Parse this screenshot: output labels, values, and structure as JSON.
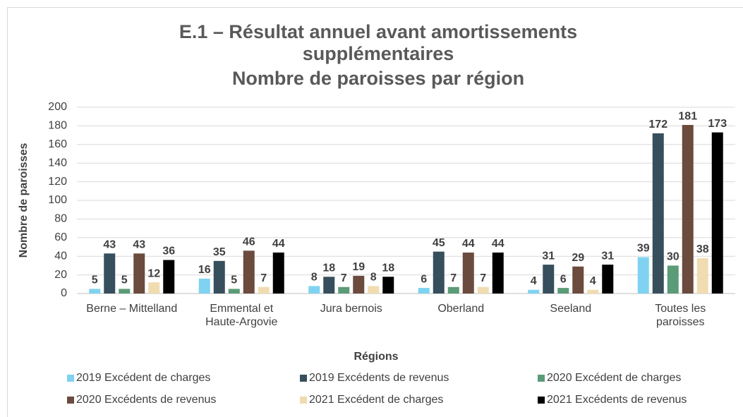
{
  "chart_data": {
    "type": "bar",
    "title": "E.1 – Résultat annuel avant amortissements supplémentaires",
    "subtitle": "Nombre de paroisses par région",
    "x_label": "Régions",
    "y_label": "Nombre de paroisses",
    "categories": [
      "Berne – Mittelland",
      "Emmental et Haute-Argovie",
      "Jura bernois",
      "Oberland",
      "Seeland",
      "Toutes les paroisses"
    ],
    "series": [
      {
        "name": "2019 Excédent de charges",
        "color": "#7fd3f0",
        "values": [
          5,
          16,
          8,
          6,
          4,
          39
        ]
      },
      {
        "name": "2019 Excédents de revenus",
        "color": "#374f5c",
        "values": [
          43,
          35,
          18,
          45,
          31,
          172
        ]
      },
      {
        "name": "2020 Excédent de charges",
        "color": "#5b9b78",
        "values": [
          5,
          5,
          7,
          7,
          6,
          30
        ]
      },
      {
        "name": "2020 Excédents de revenus",
        "color": "#6b4b3e",
        "values": [
          43,
          46,
          19,
          44,
          29,
          181
        ]
      },
      {
        "name": "2021 Excédent de charges",
        "color": "#f0dcb0",
        "values": [
          12,
          7,
          8,
          7,
          4,
          38
        ]
      },
      {
        "name": "2021 Excédents de revenus",
        "color": "#000000",
        "values": [
          36,
          44,
          18,
          44,
          31,
          173
        ]
      }
    ],
    "ylim": [
      0,
      200
    ],
    "yticks": [
      0,
      20,
      40,
      60,
      80,
      100,
      120,
      140,
      160,
      180,
      200
    ],
    "grid": true,
    "legend": "bottom"
  }
}
